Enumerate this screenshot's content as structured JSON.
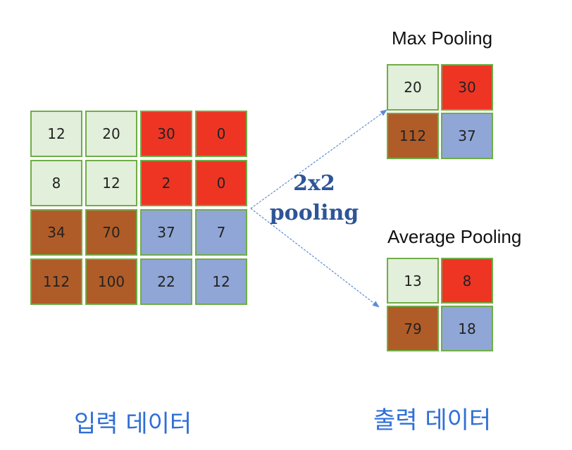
{
  "colors": {
    "light_green": "#e2efda",
    "red": "#ee3524",
    "brown": "#b05c28",
    "blue": "#8fa6d6",
    "border_green": "#70ad47",
    "arrow_blue": "#5b8cd6",
    "label_blue": "#2e5597",
    "caption_blue": "#2f6fd6"
  },
  "input": {
    "caption": "입력 데이터",
    "cells": [
      [
        {
          "value": "12",
          "color": "light_green"
        },
        {
          "value": "20",
          "color": "light_green"
        },
        {
          "value": "30",
          "color": "red"
        },
        {
          "value": "0",
          "color": "red"
        }
      ],
      [
        {
          "value": "8",
          "color": "light_green"
        },
        {
          "value": "12",
          "color": "light_green"
        },
        {
          "value": "2",
          "color": "red"
        },
        {
          "value": "0",
          "color": "red"
        }
      ],
      [
        {
          "value": "34",
          "color": "brown"
        },
        {
          "value": "70",
          "color": "brown"
        },
        {
          "value": "37",
          "color": "blue"
        },
        {
          "value": "7",
          "color": "blue"
        }
      ],
      [
        {
          "value": "112",
          "color": "brown"
        },
        {
          "value": "100",
          "color": "brown"
        },
        {
          "value": "22",
          "color": "blue"
        },
        {
          "value": "12",
          "color": "blue"
        }
      ]
    ]
  },
  "operation": {
    "line1": "2x2",
    "line2": "pooling"
  },
  "max_pooling": {
    "title": "Max Pooling",
    "cells": [
      [
        {
          "value": "20",
          "color": "light_green"
        },
        {
          "value": "30",
          "color": "red"
        }
      ],
      [
        {
          "value": "112",
          "color": "brown"
        },
        {
          "value": "37",
          "color": "blue"
        }
      ]
    ]
  },
  "average_pooling": {
    "title": "Average Pooling",
    "cells": [
      [
        {
          "value": "13",
          "color": "light_green"
        },
        {
          "value": "8",
          "color": "red"
        }
      ],
      [
        {
          "value": "79",
          "color": "brown"
        },
        {
          "value": "18",
          "color": "blue"
        }
      ]
    ]
  },
  "output": {
    "caption": "출력 데이터"
  }
}
